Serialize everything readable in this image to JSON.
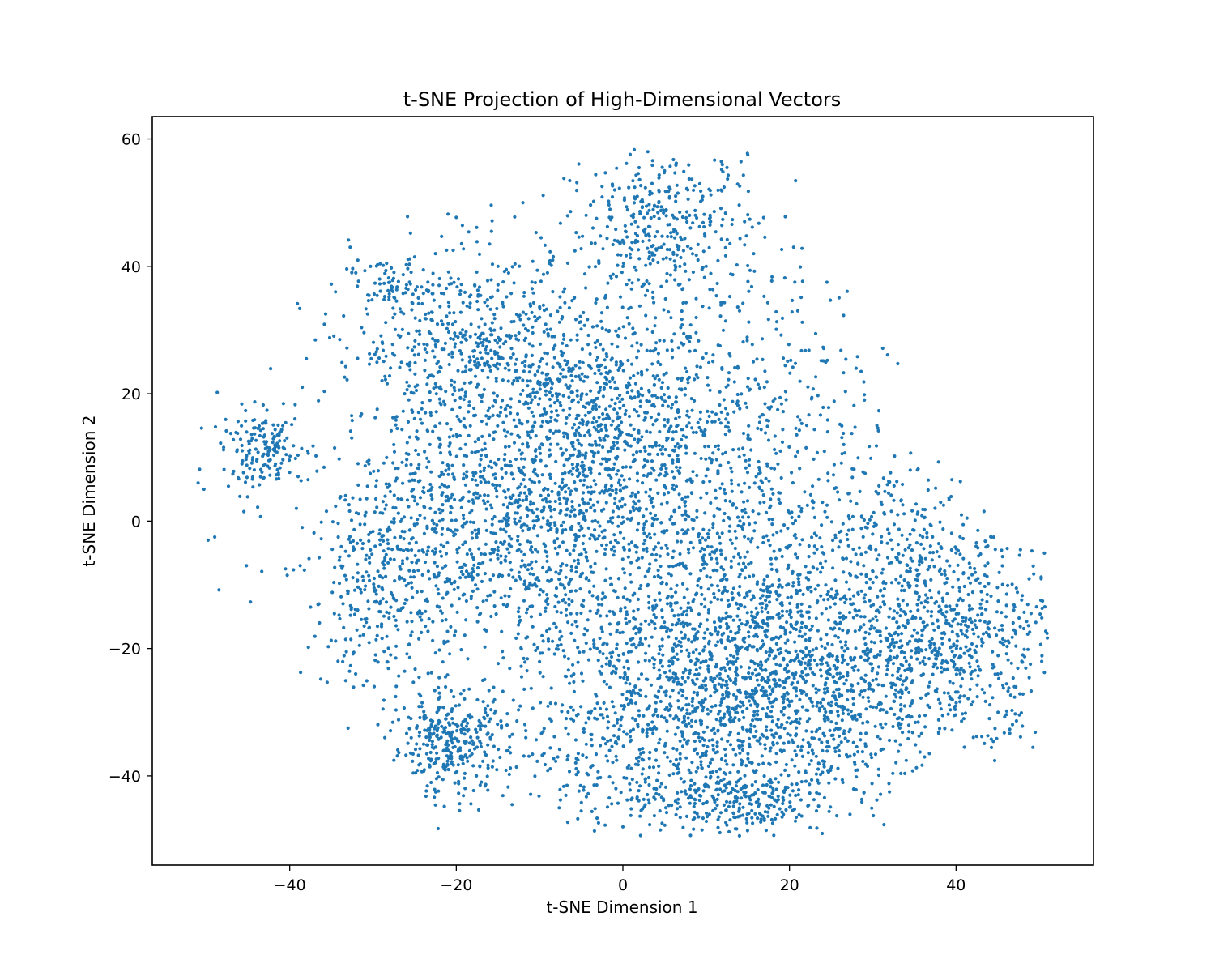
{
  "chart_data": {
    "type": "scatter",
    "title": "t-SNE Projection of High-Dimensional Vectors",
    "xlabel": "t-SNE Dimension 1",
    "ylabel": "t-SNE Dimension 2",
    "xlim": [
      -56.5,
      56.5
    ],
    "ylim": [
      -54,
      63.5
    ],
    "xticks": [
      -40,
      -20,
      0,
      20,
      40
    ],
    "yticks": [
      -40,
      -20,
      0,
      20,
      40,
      60
    ],
    "xtick_labels": [
      "−40",
      "−20",
      "0",
      "20",
      "40"
    ],
    "ytick_labels": [
      "−40",
      "−20",
      "0",
      "20",
      "40",
      "60"
    ],
    "grid": false,
    "legend": "none",
    "marker_color": "#1f77b4",
    "series": [
      {
        "approx_points": 8000,
        "points": [
          [
            -51,
            6
          ],
          [
            -50.3,
            5
          ],
          [
            -49.8,
            -3
          ],
          [
            -49,
            -2.5
          ],
          [
            -48.7,
            20.2
          ],
          [
            -48.5,
            -10.8
          ],
          [
            -45.5,
            1.5
          ],
          [
            -45.2,
            -7
          ],
          [
            -44.7,
            -12.7
          ],
          [
            -44.5,
            13
          ],
          [
            -43.8,
            10.8
          ],
          [
            -43.5,
            0.7
          ],
          [
            -43,
            13.5
          ],
          [
            -42.5,
            9.5
          ],
          [
            -41.5,
            12.2
          ],
          [
            -40.5,
            -7.5
          ],
          [
            -40.3,
            -8.5
          ],
          [
            -39,
            7
          ],
          [
            -38.5,
            -1
          ],
          [
            -38.5,
            21
          ],
          [
            -38,
            25.5
          ],
          [
            -37.8,
            6.5
          ],
          [
            -37.5,
            -13.5
          ],
          [
            -37.2,
            11.8
          ],
          [
            -36.5,
            -13
          ],
          [
            -35.5,
            -25.3
          ],
          [
            -35.2,
            28.8
          ],
          [
            -35,
            37.2
          ],
          [
            -34.5,
            36
          ],
          [
            -34,
            28.5
          ],
          [
            -33.8,
            -4
          ],
          [
            -33.2,
            -20.5
          ],
          [
            -33,
            -32.5
          ],
          [
            -32.5,
            15.8
          ],
          [
            -31.5,
            16.5
          ],
          [
            -31.5,
            -3
          ],
          [
            -31,
            -0.5
          ],
          [
            -30.5,
            9
          ],
          [
            -29.8,
            -11
          ],
          [
            -29.2,
            38
          ],
          [
            -28.8,
            -29.5
          ],
          [
            -28,
            37.5
          ],
          [
            -27.5,
            12
          ],
          [
            -27,
            3.5
          ],
          [
            -27,
            -14
          ],
          [
            -26.2,
            20
          ],
          [
            -25.5,
            45.2
          ],
          [
            -24.5,
            -18.5
          ],
          [
            -23.5,
            26.5
          ],
          [
            -22.5,
            42
          ],
          [
            -22,
            0
          ],
          [
            -21.5,
            -36
          ],
          [
            -21.2,
            -11.5
          ],
          [
            -21,
            48.2
          ],
          [
            -20.5,
            17.5
          ],
          [
            -20.5,
            -31
          ],
          [
            -19.5,
            29.5
          ],
          [
            -18,
            -11
          ],
          [
            -17.5,
            -35.5
          ],
          [
            -16,
            43.5
          ],
          [
            -15.8,
            49.6
          ],
          [
            -14,
            39.5
          ],
          [
            -13.3,
            -44.5
          ],
          [
            -12,
            50
          ],
          [
            -10.5,
            11
          ],
          [
            -10,
            32
          ],
          [
            -8,
            20
          ],
          [
            -7,
            -10.5
          ],
          [
            -6,
            24
          ],
          [
            -5,
            -45.5
          ],
          [
            -4,
            12
          ],
          [
            -3.5,
            50.2
          ],
          [
            -2,
            30
          ],
          [
            -1,
            9
          ],
          [
            0,
            -48
          ],
          [
            0.5,
            21
          ],
          [
            1,
            -27
          ],
          [
            1.5,
            47
          ],
          [
            2.5,
            -1
          ],
          [
            3,
            58
          ],
          [
            3.5,
            53
          ],
          [
            4,
            28
          ],
          [
            4.5,
            -48.5
          ],
          [
            5,
            55
          ],
          [
            6,
            -20
          ],
          [
            7.5,
            24
          ],
          [
            8,
            48
          ],
          [
            9.5,
            -48.5
          ],
          [
            10,
            40
          ],
          [
            11,
            -12
          ],
          [
            12.5,
            55.5
          ],
          [
            13.5,
            -48.3
          ],
          [
            14,
            33
          ],
          [
            15,
            57.5
          ],
          [
            16,
            -33
          ],
          [
            17,
            21
          ],
          [
            18.5,
            -44
          ],
          [
            19.5,
            47.8
          ],
          [
            20.5,
            43
          ],
          [
            21,
            33
          ],
          [
            22,
            11.5
          ],
          [
            23,
            -5
          ],
          [
            23.5,
            -38
          ],
          [
            24.5,
            37.5
          ],
          [
            25.5,
            -12
          ],
          [
            26.5,
            32.3
          ],
          [
            27,
            -37
          ],
          [
            28,
            24
          ],
          [
            29,
            19
          ],
          [
            30,
            -25
          ],
          [
            31,
            3
          ],
          [
            32,
            -42.5
          ],
          [
            33,
            1
          ],
          [
            34.5,
            8
          ],
          [
            36,
            -2.5
          ],
          [
            36.8,
            -36.5
          ],
          [
            37.5,
            -21
          ],
          [
            38.5,
            2.5
          ],
          [
            39.5,
            6.5
          ],
          [
            40,
            -5
          ],
          [
            41,
            -35.5
          ],
          [
            42,
            -17
          ],
          [
            43.5,
            -7
          ],
          [
            44,
            -31
          ],
          [
            45,
            -24
          ],
          [
            46,
            -15
          ],
          [
            47,
            -26
          ],
          [
            48,
            -21
          ],
          [
            49,
            -14.5
          ],
          [
            50.3,
            -15.2
          ]
        ]
      }
    ]
  }
}
